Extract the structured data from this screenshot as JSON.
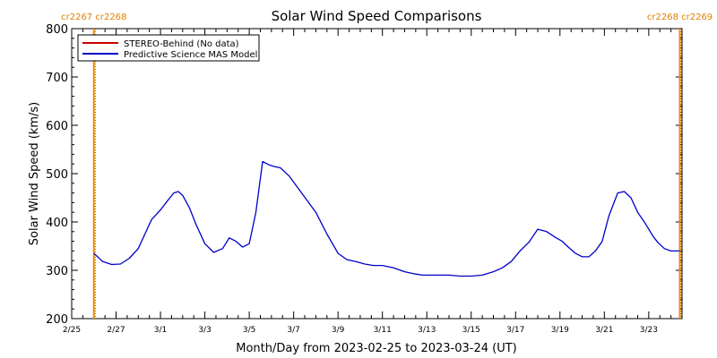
{
  "chart_data": {
    "type": "line",
    "title": "Solar Wind Speed Comparisons",
    "xlabel": "Month/Day from 2023-02-25 to 2023-03-24 (UT)",
    "ylabel": "Solar Wind Speed (km/s)",
    "ylim": [
      200,
      800
    ],
    "yticks": [
      200,
      300,
      400,
      500,
      600,
      700,
      800
    ],
    "xlim_days": [
      0,
      27.5
    ],
    "xticks": [
      {
        "day": 0,
        "label": "2/25"
      },
      {
        "day": 2,
        "label": "2/27"
      },
      {
        "day": 4,
        "label": "3/1"
      },
      {
        "day": 6,
        "label": "3/3"
      },
      {
        "day": 8,
        "label": "3/5"
      },
      {
        "day": 10,
        "label": "3/7"
      },
      {
        "day": 12,
        "label": "3/9"
      },
      {
        "day": 14,
        "label": "3/11"
      },
      {
        "day": 16,
        "label": "3/13"
      },
      {
        "day": 18,
        "label": "3/15"
      },
      {
        "day": 20,
        "label": "3/17"
      },
      {
        "day": 22,
        "label": "3/19"
      },
      {
        "day": 24,
        "label": "3/21"
      },
      {
        "day": 26,
        "label": "3/23"
      }
    ],
    "legend_placement": "top-left",
    "carrington_markers": [
      {
        "day": 1.0,
        "labels": [
          "cr2267",
          "cr2268"
        ],
        "side": "left"
      },
      {
        "day": 27.4,
        "labels": [
          "cr2268",
          "cr2269"
        ],
        "side": "right"
      }
    ],
    "series": [
      {
        "name": "STEREO-Behind (No data)",
        "color": "#cc0000",
        "x": [],
        "y": []
      },
      {
        "name": "Predictive Science MAS Model",
        "color": "#0000cc",
        "x": [
          1.0,
          1.4,
          1.8,
          2.2,
          2.6,
          3.0,
          3.3,
          3.6,
          4.0,
          4.3,
          4.6,
          4.8,
          5.0,
          5.3,
          5.6,
          6.0,
          6.4,
          6.8,
          7.1,
          7.4,
          7.7,
          8.0,
          8.3,
          8.6,
          8.9,
          9.1,
          9.4,
          9.8,
          10.2,
          10.6,
          11.0,
          11.5,
          12.0,
          12.4,
          12.8,
          13.2,
          13.6,
          14.0,
          14.5,
          15.0,
          15.4,
          15.8,
          16.2,
          16.6,
          17.0,
          17.5,
          18.0,
          18.5,
          19.0,
          19.4,
          19.8,
          20.2,
          20.6,
          21.0,
          21.4,
          21.8,
          22.1,
          22.4,
          22.7,
          23.0,
          23.3,
          23.6,
          23.9,
          24.2,
          24.6,
          24.9,
          25.2,
          25.5,
          25.8,
          26.0,
          26.2,
          26.4,
          26.7,
          27.0,
          27.4
        ],
        "y": [
          335,
          318,
          312,
          313,
          325,
          345,
          375,
          405,
          425,
          443,
          460,
          463,
          455,
          430,
          395,
          355,
          337,
          345,
          367,
          360,
          348,
          355,
          420,
          525,
          518,
          515,
          512,
          495,
          470,
          445,
          420,
          375,
          335,
          322,
          318,
          313,
          310,
          310,
          305,
          297,
          293,
          290,
          290,
          290,
          290,
          288,
          288,
          290,
          297,
          305,
          318,
          340,
          358,
          385,
          380,
          368,
          360,
          347,
          335,
          328,
          328,
          340,
          360,
          412,
          460,
          463,
          450,
          420,
          400,
          385,
          370,
          358,
          345,
          340,
          340
        ]
      }
    ]
  }
}
